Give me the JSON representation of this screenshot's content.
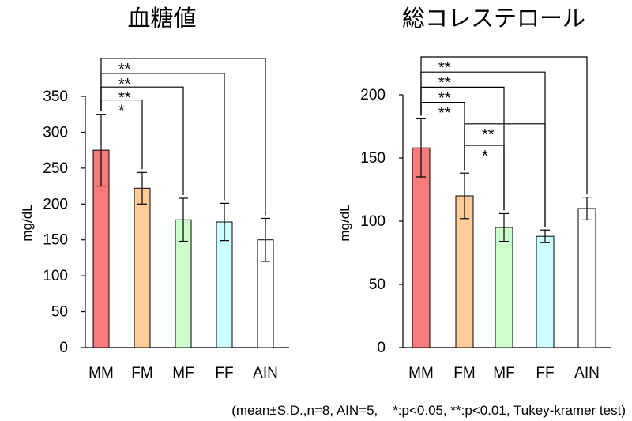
{
  "chart_data": [
    {
      "type": "bar",
      "title": "血糖値",
      "ylabel": "mg/dL",
      "ylim": [
        0,
        350
      ],
      "yticks": [
        0,
        50,
        100,
        150,
        200,
        250,
        300,
        350
      ],
      "categories": [
        "MM",
        "FM",
        "MF",
        "FF",
        "AIN"
      ],
      "values": [
        275,
        222,
        178,
        175,
        150
      ],
      "errors": [
        50,
        22,
        30,
        26,
        30
      ],
      "colors": [
        "#F97A7A",
        "#FFCC99",
        "#CCFFCC",
        "#CCFFFF",
        "#FFFFFF"
      ],
      "significance": [
        {
          "from": "MM",
          "to": "FM",
          "label": "*",
          "y": 345
        },
        {
          "from": "MM",
          "to": "MF",
          "label": "**",
          "y": 363
        },
        {
          "from": "MM",
          "to": "FF",
          "label": "**",
          "y": 382
        },
        {
          "from": "MM",
          "to": "AIN",
          "label": "**",
          "y": 403
        }
      ]
    },
    {
      "type": "bar",
      "title": "総コレステロール",
      "ylabel": "mg/dL",
      "ylim": [
        0,
        200
      ],
      "yticks": [
        0,
        50,
        100,
        150,
        200
      ],
      "categories": [
        "MM",
        "FM",
        "MF",
        "FF",
        "AIN"
      ],
      "values": [
        158,
        120,
        95,
        88,
        110
      ],
      "errors": [
        23,
        18,
        11,
        5,
        9
      ],
      "colors": [
        "#F97A7A",
        "#FFCC99",
        "#CCFFCC",
        "#CCFFFF",
        "#FFFFFF"
      ],
      "significance": [
        {
          "from": "MM",
          "to": "FM",
          "label": "**",
          "y": 194
        },
        {
          "from": "MM",
          "to": "MF",
          "label": "**",
          "y": 206
        },
        {
          "from": "MM",
          "to": "FF",
          "label": "**",
          "y": 218
        },
        {
          "from": "MM",
          "to": "AIN",
          "label": "**",
          "y": 230
        },
        {
          "from": "FM",
          "to": "MF",
          "label": "*",
          "y": 160
        },
        {
          "from": "FM",
          "to": "FF",
          "label": "**",
          "y": 177
        }
      ]
    }
  ],
  "footnote": "(mean±S.D.,n=8, AIN=5,    *:p<0.05, **:p<0.01, Tukey-kramer test)"
}
